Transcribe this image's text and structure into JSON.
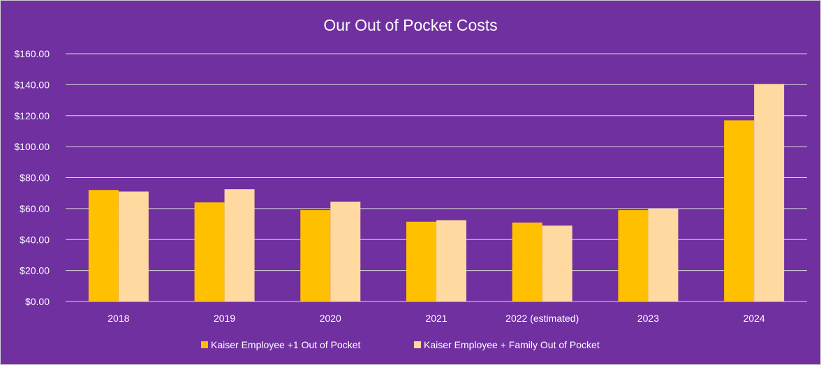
{
  "chart_data": {
    "type": "bar",
    "title": "Our Out of Pocket Costs",
    "categories": [
      "2018",
      "2019",
      "2020",
      "2021",
      "2022 (estimated)",
      "2023",
      "2024"
    ],
    "series": [
      {
        "name": "Kaiser Employee +1 Out of Pocket",
        "color": "#ffc000",
        "values": [
          72,
          64,
          59,
          51.5,
          51,
          59,
          117
        ]
      },
      {
        "name": "Kaiser Employee + Family Out of Pocket",
        "color": "#ffd9a0",
        "values": [
          71,
          72.5,
          64.5,
          52.5,
          49,
          60,
          140.5
        ]
      }
    ],
    "ylim": [
      0,
      160
    ],
    "yticks": [
      "$0.00",
      "$20.00",
      "$40.00",
      "$60.00",
      "$80.00",
      "$100.00",
      "$120.00",
      "$140.00",
      "$160.00"
    ],
    "grid": true,
    "legend_position": "bottom",
    "background_color": "#7030a0"
  }
}
